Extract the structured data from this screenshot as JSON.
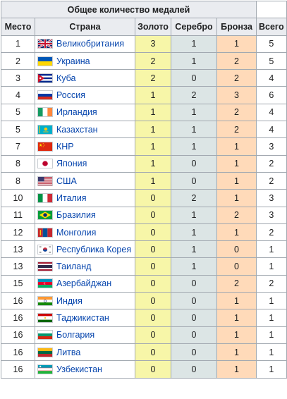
{
  "table": {
    "title": "Общее количество медалей",
    "headers": {
      "place": "Место",
      "country": "Страна",
      "gold": "Золото",
      "silver": "Серебро",
      "bronze": "Бронза",
      "total": "Всего"
    },
    "rows": [
      {
        "place": "1",
        "country": "Великобритания",
        "flag": "gb-flag-icon",
        "gold": "3",
        "silver": "1",
        "bronze": "1",
        "total": "5"
      },
      {
        "place": "2",
        "country": "Украина",
        "flag": "ua-flag-icon",
        "gold": "2",
        "silver": "1",
        "bronze": "2",
        "total": "5"
      },
      {
        "place": "3",
        "country": "Куба",
        "flag": "cu-flag-icon",
        "gold": "2",
        "silver": "0",
        "bronze": "2",
        "total": "4"
      },
      {
        "place": "4",
        "country": "Россия",
        "flag": "ru-flag-icon",
        "gold": "1",
        "silver": "2",
        "bronze": "3",
        "total": "6"
      },
      {
        "place": "5",
        "country": "Ирландия",
        "flag": "ie-flag-icon",
        "gold": "1",
        "silver": "1",
        "bronze": "2",
        "total": "4"
      },
      {
        "place": "5",
        "country": "Казахстан",
        "flag": "kz-flag-icon",
        "gold": "1",
        "silver": "1",
        "bronze": "2",
        "total": "4"
      },
      {
        "place": "7",
        "country": "КНР",
        "flag": "cn-flag-icon",
        "gold": "1",
        "silver": "1",
        "bronze": "1",
        "total": "3"
      },
      {
        "place": "8",
        "country": "Япония",
        "flag": "jp-flag-icon",
        "gold": "1",
        "silver": "0",
        "bronze": "1",
        "total": "2"
      },
      {
        "place": "8",
        "country": "США",
        "flag": "us-flag-icon",
        "gold": "1",
        "silver": "0",
        "bronze": "1",
        "total": "2"
      },
      {
        "place": "10",
        "country": "Италия",
        "flag": "it-flag-icon",
        "gold": "0",
        "silver": "2",
        "bronze": "1",
        "total": "3"
      },
      {
        "place": "11",
        "country": "Бразилия",
        "flag": "br-flag-icon",
        "gold": "0",
        "silver": "1",
        "bronze": "2",
        "total": "3"
      },
      {
        "place": "12",
        "country": "Монголия",
        "flag": "mn-flag-icon",
        "gold": "0",
        "silver": "1",
        "bronze": "1",
        "total": "2"
      },
      {
        "place": "13",
        "country": "Республика Корея",
        "flag": "kr-flag-icon",
        "gold": "0",
        "silver": "1",
        "bronze": "0",
        "total": "1"
      },
      {
        "place": "13",
        "country": "Таиланд",
        "flag": "th-flag-icon",
        "gold": "0",
        "silver": "1",
        "bronze": "0",
        "total": "1"
      },
      {
        "place": "15",
        "country": "Азербайджан",
        "flag": "az-flag-icon",
        "gold": "0",
        "silver": "0",
        "bronze": "2",
        "total": "2"
      },
      {
        "place": "16",
        "country": "Индия",
        "flag": "in-flag-icon",
        "gold": "0",
        "silver": "0",
        "bronze": "1",
        "total": "1"
      },
      {
        "place": "16",
        "country": "Таджикистан",
        "flag": "tj-flag-icon",
        "gold": "0",
        "silver": "0",
        "bronze": "1",
        "total": "1"
      },
      {
        "place": "16",
        "country": "Болгария",
        "flag": "bg-flag-icon",
        "gold": "0",
        "silver": "0",
        "bronze": "1",
        "total": "1"
      },
      {
        "place": "16",
        "country": "Литва",
        "flag": "lt-flag-icon",
        "gold": "0",
        "silver": "0",
        "bronze": "1",
        "total": "1"
      },
      {
        "place": "16",
        "country": "Узбекистан",
        "flag": "uz-flag-icon",
        "gold": "0",
        "silver": "0",
        "bronze": "1",
        "total": "1"
      }
    ]
  },
  "colors": {
    "gold": "#f7f6a8",
    "silver": "#dce5e5",
    "bronze": "#ffdab9",
    "header": "#eaecf0",
    "link": "#0645ad",
    "border": "#a2a9b1"
  }
}
